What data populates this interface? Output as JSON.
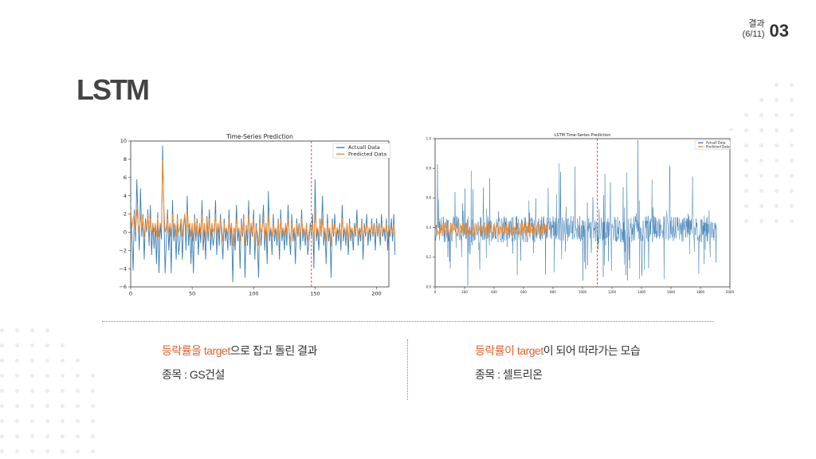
{
  "header": {
    "section_label": "결과",
    "page_label": "(6/11)",
    "section_number": "03"
  },
  "title": "LSTM",
  "colors": {
    "actual": "#3b7db5",
    "predicted": "#f08a2c",
    "split_line": "#d62728",
    "highlight": "#e0602e"
  },
  "left_caption": {
    "highlight": "등락률을 target",
    "rest": "으로 잡고 돌린 결과",
    "detail": "종목 : GS건설"
  },
  "right_caption": {
    "highlight": "등락률이 target",
    "rest": "이 되어 따라가는 모습",
    "detail": "종목 : 셀트리온"
  },
  "chart_data": [
    {
      "type": "line",
      "title": "Time-Series Prediction",
      "xlim": [
        0,
        210
      ],
      "ylim": [
        -6,
        10
      ],
      "xticks": [
        "0",
        "50",
        "100",
        "150",
        "200"
      ],
      "yticks": [
        "−6",
        "−4",
        "−2",
        "0",
        "2",
        "4",
        "6",
        "8",
        "10"
      ],
      "split_x": 147,
      "legend_position": "top-right",
      "legend": [
        "Actuall Data",
        "Predicted Data"
      ],
      "series": [
        {
          "name": "Actuall Data",
          "values": [
            3.2,
            -0.5,
            -4.2,
            2.5,
            -1.0,
            5.8,
            1.2,
            -2.0,
            4.8,
            -0.5,
            2.0,
            -3.0,
            1.5,
            0.0,
            2.5,
            -1.5,
            3.0,
            -2.5,
            1.0,
            -1.8,
            0.5,
            -3.5,
            2.2,
            -4.5,
            1.0,
            -0.8,
            9.5,
            2.0,
            -4.5,
            -1.0,
            2.5,
            -2.0,
            1.0,
            -4.5,
            3.5,
            -1.0,
            0.8,
            -3.0,
            2.0,
            -2.5,
            -1.0,
            1.5,
            -3.0,
            0.5,
            2.0,
            -2.0,
            4.0,
            -1.5,
            1.0,
            -3.5,
            0.5,
            -4.5,
            2.0,
            -1.0,
            1.5,
            -2.5,
            0.8,
            -1.2,
            3.5,
            -2.0,
            0.5,
            -3.0,
            1.8,
            -1.0,
            2.5,
            -2.0,
            0.5,
            -1.5,
            -0.5,
            3.5,
            -2.5,
            1.0,
            -1.5,
            2.0,
            -0.5,
            -3.0,
            1.5,
            -1.0,
            0.5,
            -2.0,
            2.5,
            -1.5,
            1.0,
            -5.5,
            0.5,
            -2.0,
            3.0,
            -1.0,
            0.5,
            -4.0,
            1.5,
            -0.5,
            2.0,
            -5.0,
            0.8,
            -1.5,
            3.5,
            -2.5,
            1.0,
            -0.5,
            2.5,
            -3.0,
            1.0,
            -1.0,
            -5.0,
            2.0,
            -1.5,
            0.5,
            3.0,
            -2.0,
            1.0,
            -3.5,
            4.5,
            -1.0,
            0.5,
            -2.5,
            2.0,
            -1.0,
            0.5,
            -1.5,
            1.5,
            -3.0,
            2.5,
            -1.0,
            0.5,
            -2.0,
            1.0,
            -1.5,
            3.0,
            -0.5,
            -2.5,
            2.0,
            -1.0,
            0.5,
            -3.5,
            1.5,
            -0.5,
            1.0,
            -2.0,
            2.5,
            -1.0,
            0.5,
            -1.5,
            1.0,
            -2.5,
            -1.0,
            1.0,
            -0.5,
            2.0,
            -4.0,
            5.8,
            -1.0,
            0.5,
            -2.0,
            1.5,
            -0.5,
            4.0,
            -1.5,
            0.5,
            -3.5,
            2.0,
            -1.0,
            0.5,
            -5.0,
            1.5,
            -0.5,
            2.0,
            -1.5,
            0.5,
            -1.0,
            1.0,
            -2.0,
            3.0,
            -1.0,
            0.5,
            -1.5,
            1.0,
            -2.5,
            1.5,
            -1.0,
            0.5,
            -2.0,
            1.0,
            -0.5,
            2.5,
            -1.5,
            0.5,
            -1.0,
            1.5,
            -3.0,
            1.0,
            -0.5,
            2.0,
            -1.5,
            0.5,
            -1.0,
            1.5,
            -0.5,
            1.0,
            -2.0,
            1.5,
            -0.5,
            1.0,
            -1.5,
            2.0,
            -0.5,
            0.5,
            -1.0,
            1.5,
            -2.0,
            1.0,
            -0.5,
            1.5,
            -1.0,
            2.0,
            -2.5,
            1.8
          ]
        },
        {
          "name": "Predicted Data",
          "values": [
            2.5,
            0.5,
            1.5,
            2.0,
            0.0,
            2.5,
            1.0,
            0.0,
            2.0,
            0.5,
            1.5,
            -0.5,
            1.0,
            0.5,
            2.0,
            0.0,
            1.5,
            -0.5,
            1.0,
            0.0,
            1.0,
            -0.5,
            1.5,
            -0.5,
            1.0,
            0.5,
            8.0,
            2.5,
            0.0,
            0.5,
            1.5,
            0.0,
            1.0,
            -0.5,
            2.0,
            0.5,
            1.0,
            -0.5,
            1.5,
            0.0,
            0.5,
            1.5,
            -0.5,
            1.0,
            2.0,
            0.0,
            2.5,
            0.5,
            1.0,
            -0.5,
            1.0,
            -1.0,
            1.5,
            0.0,
            1.0,
            -0.5,
            1.0,
            0.0,
            2.0,
            -0.5,
            1.0,
            -1.0,
            1.5,
            0.0,
            1.5,
            -0.5,
            1.0,
            0.0,
            0.5,
            2.0,
            -0.5,
            1.0,
            0.0,
            1.5,
            0.5,
            -1.0,
            1.0,
            0.0,
            0.5,
            -0.5,
            1.5,
            0.0,
            1.0,
            -1.5,
            0.5,
            0.0,
            1.5,
            0.0,
            0.5,
            -1.0,
            1.0,
            0.0,
            1.5,
            -1.5,
            0.5,
            0.0,
            2.0,
            -0.5,
            1.0,
            0.0,
            1.5,
            -1.0,
            0.5,
            0.0,
            -1.5,
            1.0,
            0.0,
            0.5,
            1.5,
            -0.5,
            1.0,
            -1.0,
            2.0,
            0.0,
            0.5,
            -0.5,
            1.0,
            0.0,
            0.5,
            -0.5,
            1.0,
            -1.0,
            1.5,
            0.0,
            0.5,
            -0.5,
            1.0,
            0.0,
            1.5,
            0.0,
            -1.0,
            1.0,
            0.0,
            0.5,
            -1.0,
            1.0,
            0.0,
            0.5,
            -0.5,
            1.5,
            0.0,
            0.5,
            -0.5,
            1.0,
            -1.0,
            0.0,
            0.5,
            0.0,
            1.0,
            -1.0,
            2.5,
            0.0,
            0.5,
            -0.5,
            1.0,
            0.0,
            1.5,
            -0.5,
            0.5,
            -1.0,
            1.0,
            0.0,
            0.5,
            -1.5,
            1.0,
            0.0,
            1.0,
            -0.5,
            0.5,
            0.0,
            0.5,
            -0.5,
            1.5,
            0.0,
            0.5,
            -0.5,
            1.0,
            -1.0,
            1.0,
            0.0,
            0.5,
            -0.5,
            0.5,
            0.0,
            1.0,
            -0.5,
            0.5,
            0.0,
            1.0,
            -1.0,
            0.5,
            0.0,
            1.0,
            -0.5,
            0.5,
            0.0,
            1.0,
            0.0,
            0.5,
            -0.5,
            1.0,
            0.0,
            0.5,
            -0.5,
            1.0,
            0.0,
            0.5,
            0.0,
            1.0,
            -0.5,
            0.5,
            0.0,
            0.5,
            0.0,
            1.0,
            -0.5,
            0.5
          ]
        }
      ]
    },
    {
      "type": "line",
      "title": "LSTM Time-Series Prediction",
      "xlim": [
        0,
        2000
      ],
      "ylim": [
        0.0,
        1.0
      ],
      "xticks": [
        "0",
        "200",
        "400",
        "600",
        "800",
        "1000",
        "1200",
        "1400",
        "1600",
        "1800",
        "2000"
      ],
      "yticks": [
        "0.0",
        "0.2",
        "0.4",
        "0.6",
        "0.8",
        "1.0"
      ],
      "split_x": 1100,
      "legend_position": "top-right",
      "legend": [
        "Actuall Data",
        "Predicted Data"
      ],
      "series_summary": {
        "actual_mean": 0.39,
        "actual_min": 0.0,
        "actual_max": 0.99,
        "predicted_mean": 0.39,
        "predicted_band": [
          0.35,
          0.45
        ]
      }
    }
  ]
}
